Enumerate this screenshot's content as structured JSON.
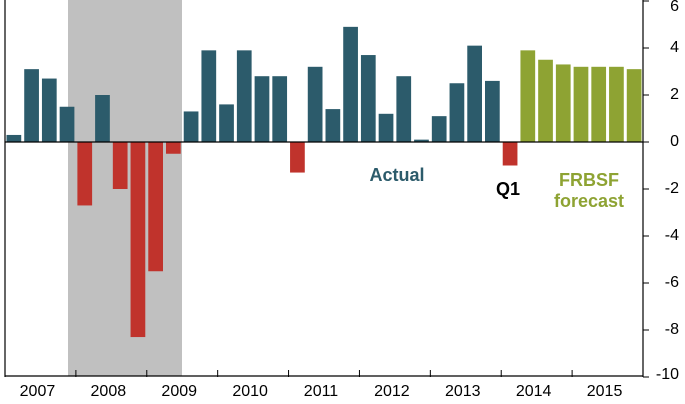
{
  "chart_data": {
    "type": "bar",
    "categories": [
      null,
      null,
      null,
      null,
      null,
      null,
      null,
      null,
      null,
      null,
      null,
      null,
      null,
      null,
      null,
      null,
      null,
      null,
      null,
      null,
      null,
      null,
      null,
      null,
      null,
      null,
      null,
      null,
      null,
      null,
      null,
      null,
      null,
      null,
      null,
      null
    ],
    "year_labels": [
      "2007",
      "2008",
      "2009",
      "2010",
      "2011",
      "2012",
      "2013",
      "2014",
      "2015"
    ],
    "series": [
      {
        "name": "Actual",
        "color": "#2c5b6b",
        "negative_color": "#c0332c",
        "values": [
          0.3,
          3.1,
          2.7,
          1.5,
          -2.7,
          2.0,
          -2.0,
          -8.3,
          -5.5,
          -0.5,
          1.3,
          3.9,
          1.6,
          3.9,
          2.8,
          2.8,
          -1.3,
          3.2,
          1.4,
          4.9,
          3.7,
          1.2,
          2.8,
          0.1,
          1.1,
          2.5,
          4.1,
          2.6,
          -1.0,
          null,
          null,
          null,
          null,
          null,
          null,
          null
        ]
      },
      {
        "name": "FRBSF forecast",
        "color": "#8ea333",
        "values": [
          null,
          null,
          null,
          null,
          null,
          null,
          null,
          null,
          null,
          null,
          null,
          null,
          null,
          null,
          null,
          null,
          null,
          null,
          null,
          null,
          null,
          null,
          null,
          null,
          null,
          null,
          null,
          null,
          null,
          3.9,
          3.5,
          3.3,
          3.2,
          3.2,
          3.2,
          3.1
        ]
      }
    ],
    "annotations": [
      "Q1"
    ],
    "ylim": [
      -10,
      6
    ],
    "yticks": [
      -10,
      -8,
      -6,
      -4,
      -2,
      0,
      2,
      4,
      6
    ]
  }
}
